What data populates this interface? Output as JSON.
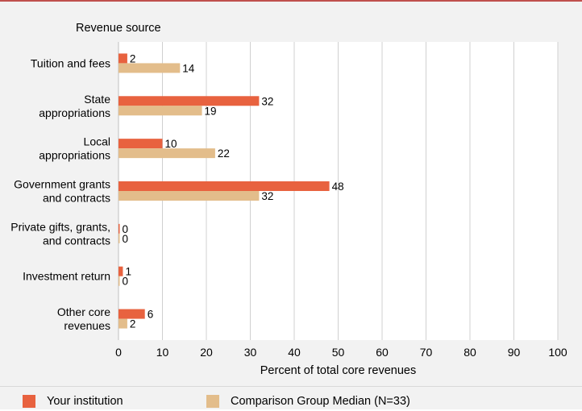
{
  "chart_data": {
    "type": "bar",
    "orientation": "horizontal",
    "category_axis_title": "Revenue source",
    "xlabel": "Percent of total core revenues",
    "xlim": [
      0,
      100
    ],
    "xticks": [
      0,
      10,
      20,
      30,
      40,
      50,
      60,
      70,
      80,
      90,
      100
    ],
    "grid": true,
    "legend_position": "bottom",
    "categories": [
      [
        "Tuition and fees"
      ],
      [
        "State",
        "appropriations"
      ],
      [
        "Local",
        "appropriations"
      ],
      [
        "Government grants",
        "and contracts"
      ],
      [
        "Private gifts, grants,",
        "and contracts"
      ],
      [
        "Investment return"
      ],
      [
        "Other core",
        "revenues"
      ]
    ],
    "series": [
      {
        "name": "Your institution",
        "color": "#e8623f",
        "values": [
          2,
          32,
          10,
          48,
          0,
          1,
          6
        ]
      },
      {
        "name": "Comparison Group Median (N=33)",
        "color": "#e3bd8b",
        "values": [
          14,
          19,
          22,
          32,
          0,
          0,
          2
        ]
      }
    ]
  }
}
